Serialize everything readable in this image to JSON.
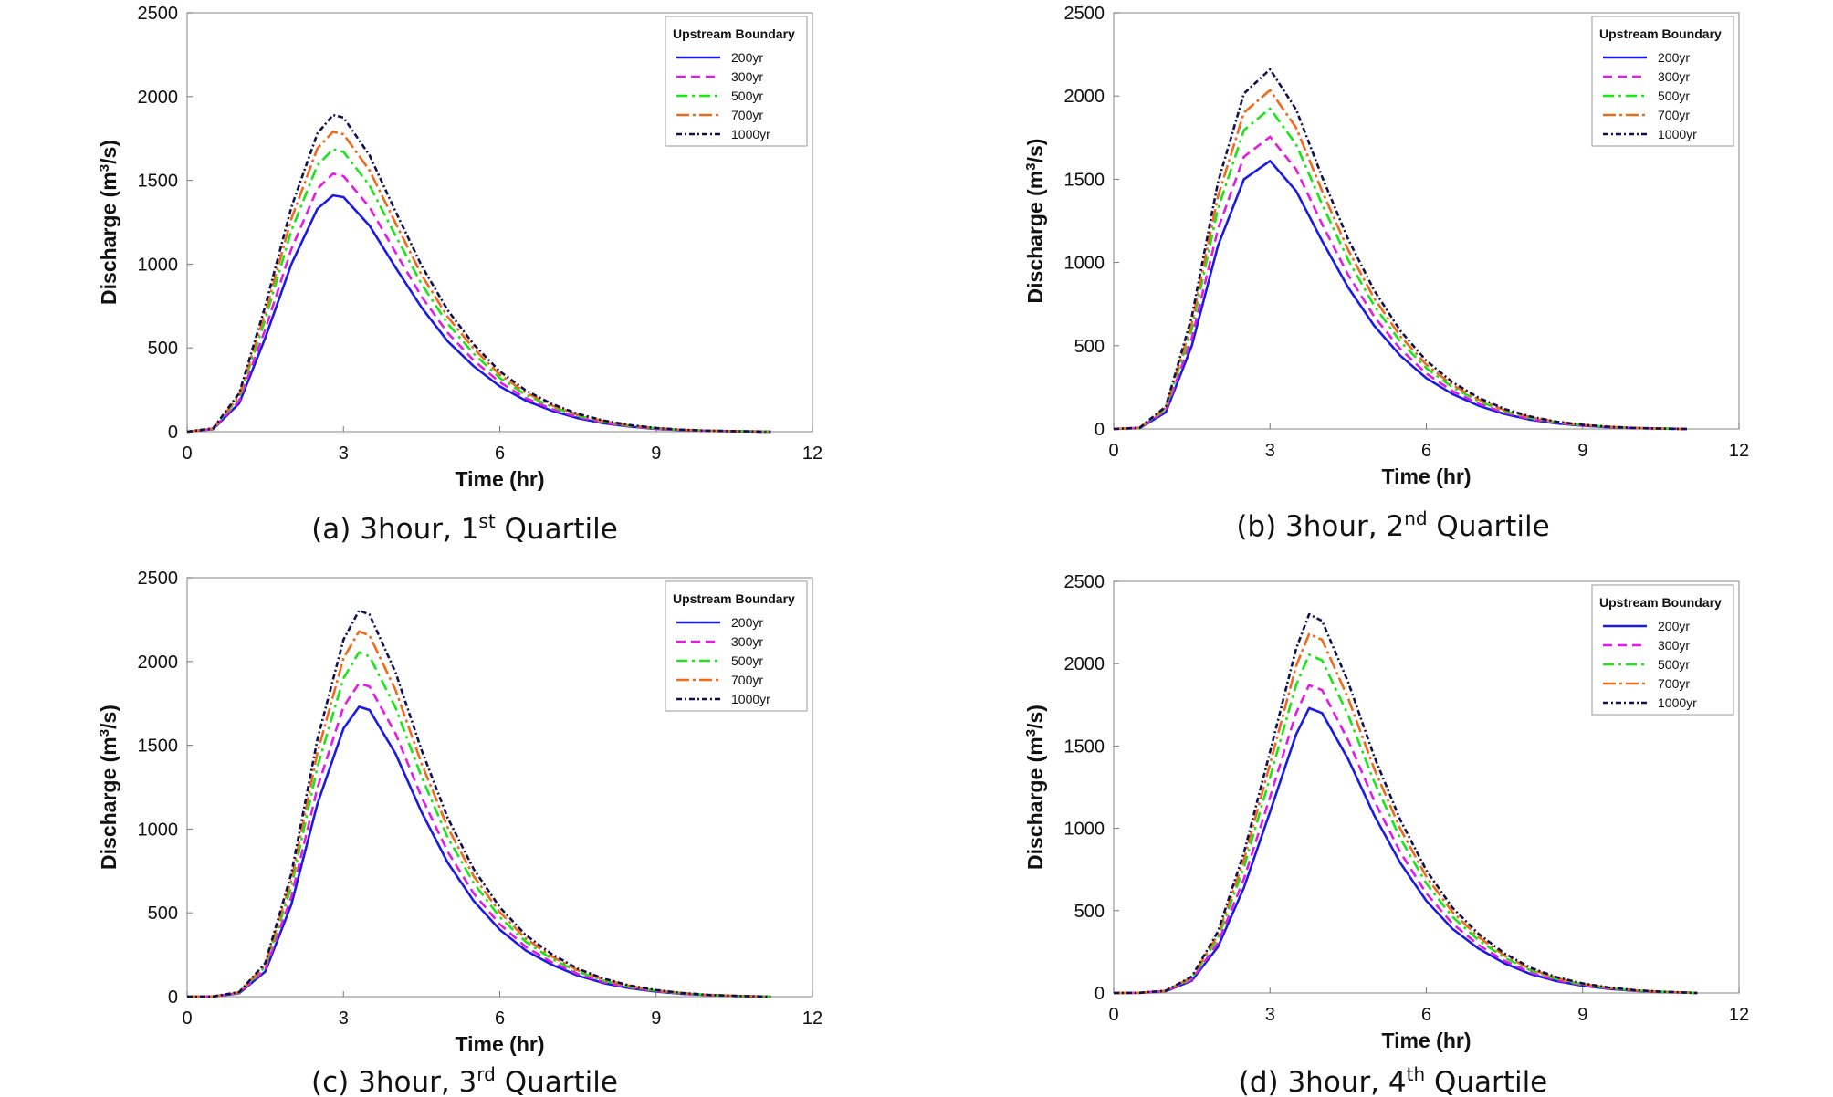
{
  "figure": {
    "legend_title": "Upstream Boundary",
    "xlabel": "Time (hr)",
    "ylabel_main": "Discharge (m",
    "ylabel_sup": "3",
    "ylabel_tail": "/s)",
    "series_styles": [
      {
        "name": "200yr",
        "color": "#1a1ae6",
        "dash": ""
      },
      {
        "name": "300yr",
        "color": "#e619e6",
        "dash": "10,6"
      },
      {
        "name": "500yr",
        "color": "#19e619",
        "dash": "12,5,3,5"
      },
      {
        "name": "700yr",
        "color": "#f06a1c",
        "dash": "14,4,3,4"
      },
      {
        "name": "1000yr",
        "color": "#101050",
        "dash": "6,3,2,3"
      }
    ]
  },
  "chart_data": [
    {
      "type": "line",
      "caption_prefix": "(a) 3hour, 1",
      "caption_sup": "st",
      "caption_suffix": " Quartile",
      "xlim": [
        0,
        12
      ],
      "ylim": [
        0,
        2500
      ],
      "xticks": [
        0,
        3,
        6,
        9,
        12
      ],
      "yticks": [
        0,
        500,
        1000,
        1500,
        2000,
        2500
      ],
      "legend": "top-right",
      "x": [
        0,
        0.5,
        1,
        1.5,
        2,
        2.5,
        2.8,
        3,
        3.5,
        4,
        4.5,
        5,
        5.5,
        6,
        6.5,
        7,
        7.5,
        8,
        8.5,
        9,
        9.5,
        10,
        10.5,
        11,
        11.2
      ],
      "series": [
        {
          "name": "200yr",
          "values": [
            0,
            15,
            170,
            560,
            1000,
            1330,
            1410,
            1400,
            1230,
            980,
            740,
            540,
            390,
            270,
            185,
            125,
            80,
            50,
            30,
            17,
            9,
            5,
            2,
            1,
            0
          ]
        },
        {
          "name": "300yr",
          "values": [
            0,
            16,
            185,
            610,
            1090,
            1450,
            1540,
            1525,
            1340,
            1070,
            805,
            590,
            425,
            295,
            200,
            135,
            87,
            54,
            32,
            18,
            10,
            5,
            2,
            1,
            0
          ]
        },
        {
          "name": "500yr",
          "values": [
            0,
            18,
            205,
            670,
            1200,
            1590,
            1685,
            1670,
            1470,
            1170,
            880,
            645,
            465,
            320,
            220,
            148,
            95,
            59,
            35,
            20,
            11,
            6,
            3,
            1,
            0
          ]
        },
        {
          "name": "700yr",
          "values": [
            0,
            19,
            215,
            710,
            1270,
            1690,
            1790,
            1775,
            1560,
            1245,
            935,
            685,
            495,
            340,
            233,
            157,
            101,
            62,
            37,
            21,
            11,
            6,
            3,
            1,
            0
          ]
        },
        {
          "name": "1000yr",
          "values": [
            0,
            20,
            230,
            750,
            1340,
            1780,
            1890,
            1875,
            1650,
            1315,
            990,
            725,
            520,
            360,
            246,
            165,
            106,
            66,
            39,
            22,
            12,
            6,
            3,
            1,
            0
          ]
        }
      ]
    },
    {
      "type": "line",
      "caption_prefix": "(b) 3hour, 2",
      "caption_sup": "nd",
      "caption_suffix": " Quartile",
      "xlim": [
        0,
        12
      ],
      "ylim": [
        0,
        2500
      ],
      "xticks": [
        0,
        3,
        6,
        9,
        12
      ],
      "yticks": [
        0,
        500,
        1000,
        1500,
        2000,
        2500
      ],
      "legend": "top-right",
      "x": [
        0,
        0.5,
        1,
        1.5,
        2,
        2.5,
        3,
        3.5,
        4,
        4.5,
        5,
        5.5,
        6,
        6.5,
        7,
        7.5,
        8,
        8.5,
        9,
        9.5,
        10,
        10.5,
        11
      ],
      "series": [
        {
          "name": "200yr",
          "values": [
            0,
            5,
            100,
            500,
            1100,
            1500,
            1610,
            1430,
            1130,
            850,
            620,
            440,
            305,
            210,
            140,
            90,
            55,
            33,
            19,
            10,
            5,
            2,
            0
          ]
        },
        {
          "name": "300yr",
          "values": [
            0,
            6,
            110,
            545,
            1200,
            1635,
            1755,
            1560,
            1230,
            925,
            675,
            480,
            333,
            228,
            152,
            98,
            60,
            36,
            21,
            11,
            5,
            2,
            0
          ]
        },
        {
          "name": "500yr",
          "values": [
            0,
            6,
            120,
            600,
            1320,
            1795,
            1925,
            1710,
            1350,
            1015,
            740,
            525,
            365,
            250,
            167,
            107,
            66,
            39,
            23,
            12,
            6,
            2,
            0
          ]
        },
        {
          "name": "700yr",
          "values": [
            0,
            7,
            128,
            635,
            1395,
            1900,
            2035,
            1810,
            1430,
            1075,
            785,
            557,
            386,
            265,
            177,
            113,
            70,
            42,
            24,
            13,
            6,
            2,
            0
          ]
        },
        {
          "name": "1000yr",
          "values": [
            0,
            7,
            135,
            675,
            1480,
            2015,
            2160,
            1920,
            1515,
            1140,
            832,
            590,
            410,
            281,
            188,
            120,
            74,
            44,
            25,
            13,
            6,
            2,
            0
          ]
        }
      ]
    },
    {
      "type": "line",
      "caption_prefix": "(c) 3hour, 3",
      "caption_sup": "rd",
      "caption_suffix": " Quartile",
      "xlim": [
        0,
        12
      ],
      "ylim": [
        0,
        2500
      ],
      "xticks": [
        0,
        3,
        6,
        9,
        12
      ],
      "yticks": [
        0,
        500,
        1000,
        1500,
        2000,
        2500
      ],
      "legend": "top-right",
      "x": [
        0,
        0.5,
        1,
        1.5,
        2,
        2.5,
        3,
        3.3,
        3.5,
        4,
        4.5,
        5,
        5.5,
        6,
        6.5,
        7,
        7.5,
        8,
        8.5,
        9,
        9.5,
        10,
        10.5,
        11,
        11.2
      ],
      "series": [
        {
          "name": "200yr",
          "values": [
            0,
            1,
            20,
            150,
            550,
            1150,
            1600,
            1730,
            1710,
            1450,
            1100,
            800,
            570,
            400,
            275,
            190,
            125,
            80,
            50,
            30,
            17,
            9,
            4,
            1,
            0
          ]
        },
        {
          "name": "300yr",
          "values": [
            0,
            1,
            22,
            162,
            595,
            1245,
            1730,
            1870,
            1850,
            1570,
            1190,
            865,
            615,
            432,
            297,
            205,
            135,
            86,
            54,
            32,
            18,
            9,
            4,
            1,
            0
          ]
        },
        {
          "name": "500yr",
          "values": [
            0,
            1,
            24,
            178,
            655,
            1370,
            1900,
            2055,
            2030,
            1725,
            1310,
            950,
            677,
            475,
            327,
            225,
            148,
            95,
            59,
            35,
            20,
            10,
            4,
            1,
            0
          ]
        },
        {
          "name": "700yr",
          "values": [
            0,
            1,
            26,
            189,
            695,
            1455,
            2020,
            2180,
            2155,
            1830,
            1390,
            1010,
            718,
            504,
            347,
            239,
            157,
            101,
            63,
            37,
            21,
            11,
            5,
            1,
            0
          ]
        },
        {
          "name": "1000yr",
          "values": [
            0,
            1,
            27,
            200,
            735,
            1535,
            2130,
            2305,
            2280,
            1935,
            1470,
            1067,
            760,
            533,
            367,
            253,
            166,
            107,
            66,
            39,
            22,
            11,
            5,
            1,
            0
          ]
        }
      ]
    },
    {
      "type": "line",
      "caption_prefix": "(d) 3hour, 4",
      "caption_sup": "th",
      "caption_suffix": " Quartile",
      "xlim": [
        0,
        12
      ],
      "ylim": [
        0,
        2500
      ],
      "xticks": [
        0,
        3,
        6,
        9,
        12
      ],
      "yticks": [
        0,
        500,
        1000,
        1500,
        2000,
        2500
      ],
      "legend": "top-right",
      "x": [
        0,
        0.5,
        1,
        1.5,
        2,
        2.5,
        3,
        3.5,
        3.75,
        4,
        4.5,
        5,
        5.5,
        6,
        6.5,
        7,
        7.5,
        8,
        8.5,
        9,
        9.5,
        10,
        10.5,
        11,
        11.2
      ],
      "series": [
        {
          "name": "200yr",
          "values": [
            0,
            1,
            10,
            75,
            280,
            640,
            1100,
            1570,
            1730,
            1700,
            1420,
            1080,
            790,
            560,
            390,
            270,
            180,
            115,
            72,
            44,
            25,
            13,
            6,
            2,
            0
          ]
        },
        {
          "name": "300yr",
          "values": [
            0,
            1,
            11,
            81,
            303,
            693,
            1190,
            1700,
            1870,
            1840,
            1535,
            1168,
            855,
            605,
            422,
            292,
            195,
            124,
            78,
            48,
            27,
            14,
            6,
            2,
            0
          ]
        },
        {
          "name": "500yr",
          "values": [
            0,
            1,
            12,
            89,
            333,
            762,
            1310,
            1870,
            2055,
            2020,
            1688,
            1283,
            939,
            665,
            463,
            321,
            214,
            137,
            86,
            52,
            30,
            15,
            7,
            2,
            0
          ]
        },
        {
          "name": "700yr",
          "values": [
            0,
            1,
            13,
            95,
            353,
            808,
            1390,
            1985,
            2180,
            2145,
            1790,
            1362,
            997,
            706,
            492,
            340,
            227,
            145,
            91,
            55,
            32,
            16,
            7,
            2,
            0
          ]
        },
        {
          "name": "1000yr",
          "values": [
            0,
            1,
            14,
            100,
            373,
            852,
            1465,
            2090,
            2300,
            2260,
            1888,
            1436,
            1051,
            745,
            519,
            359,
            240,
            153,
            96,
            58,
            33,
            17,
            8,
            2,
            0
          ]
        }
      ]
    }
  ]
}
